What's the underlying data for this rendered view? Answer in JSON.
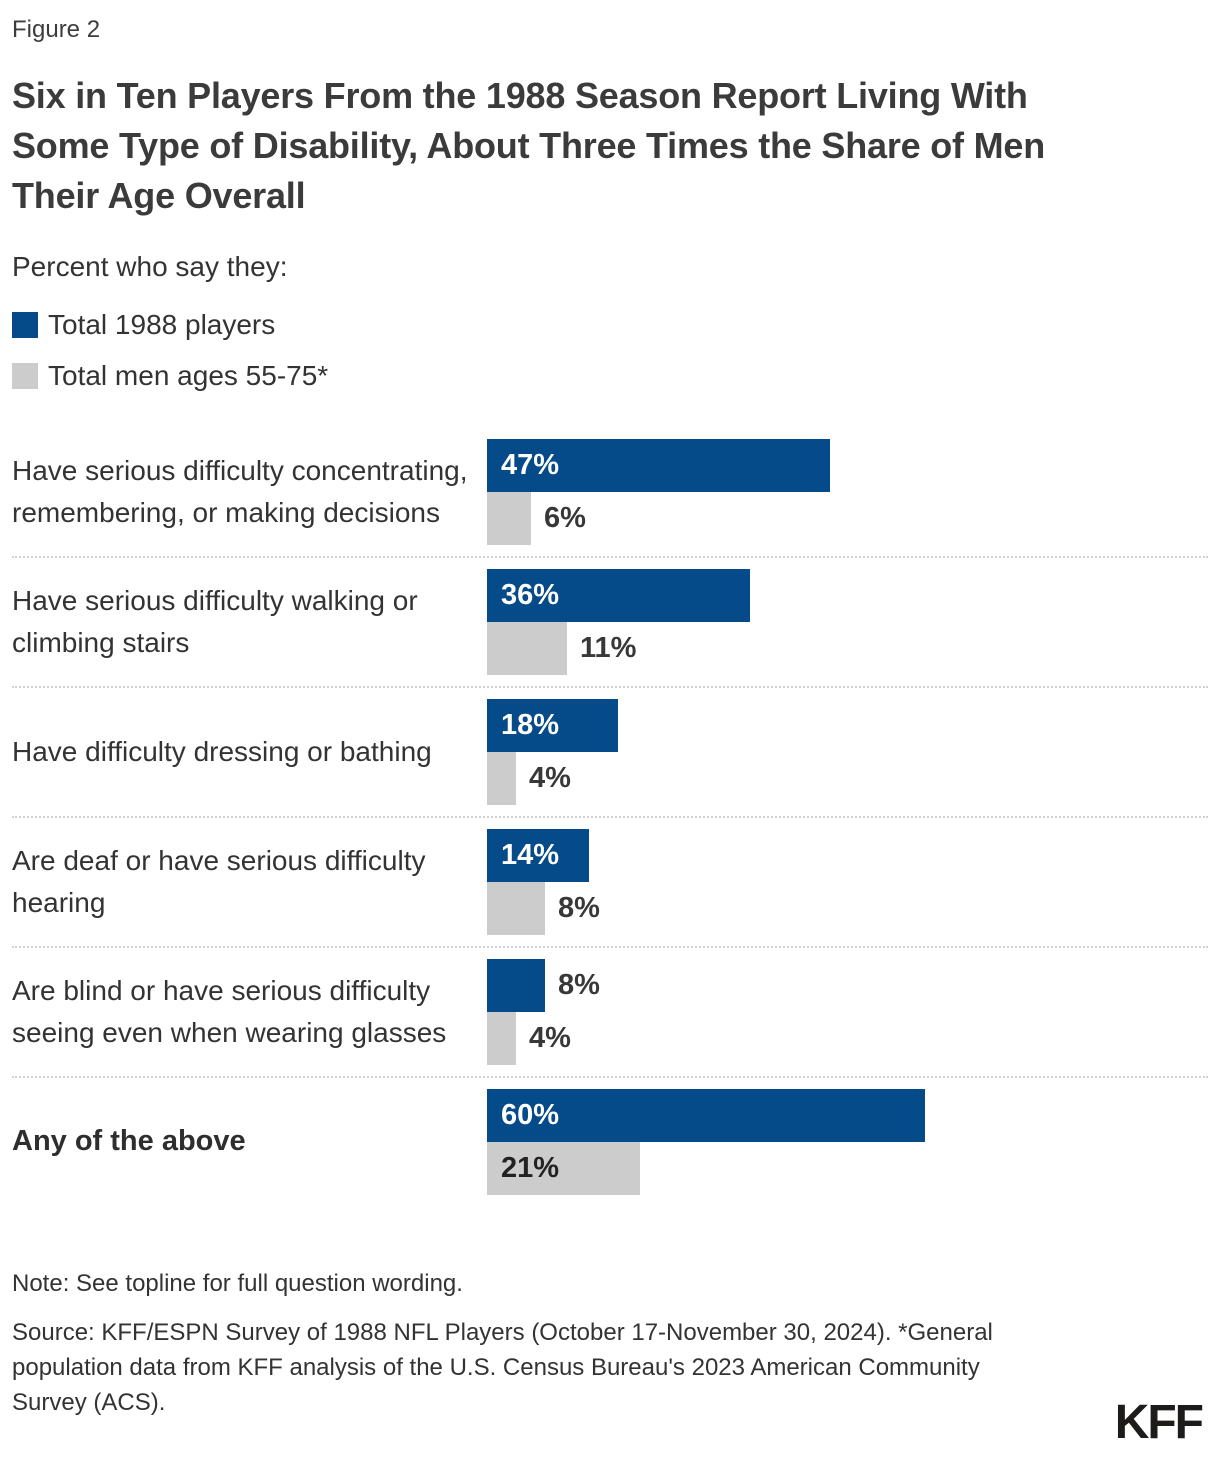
{
  "figure_label": "Figure 2",
  "title": "Six in Ten Players From the 1988 Season Report Living With Some Type of Disability, About Three Times the Share of Men Their Age Overall",
  "subtitle": "Percent who say they:",
  "legend": {
    "players": {
      "label": "Total 1988 players",
      "color": "#064b89"
    },
    "men": {
      "label": "Total men ages 55-75*",
      "color": "#cccccc"
    }
  },
  "chart_data": {
    "type": "bar",
    "orientation": "horizontal",
    "value_unit": "%",
    "value_axis_hidden": true,
    "xlim": [
      0,
      100
    ],
    "categories": [
      "Have serious difficulty concentrating, remembering, or making decisions",
      "Have serious difficulty walking or climbing stairs",
      "Have difficulty dressing or bathing",
      "Are deaf or have serious difficulty hearing",
      "Are blind or have serious difficulty seeing even when wearing glasses",
      "Any of the above"
    ],
    "emphasized_category": "Any of the above",
    "series": [
      {
        "name": "Total 1988 players",
        "color": "#064b89",
        "values": [
          47,
          36,
          18,
          14,
          8,
          60
        ]
      },
      {
        "name": "Total men ages 55-75*",
        "color": "#cccccc",
        "values": [
          6,
          11,
          4,
          8,
          4,
          21
        ]
      }
    ]
  },
  "footer": {
    "note": "Note: See topline for full question wording.",
    "source": "Source: KFF/ESPN Survey of 1988 NFL Players (October 17-November 30, 2024). *General population data from KFF analysis of the U.S. Census Bureau's 2023 American Community Survey (ACS).",
    "logo_text": "KFF"
  }
}
